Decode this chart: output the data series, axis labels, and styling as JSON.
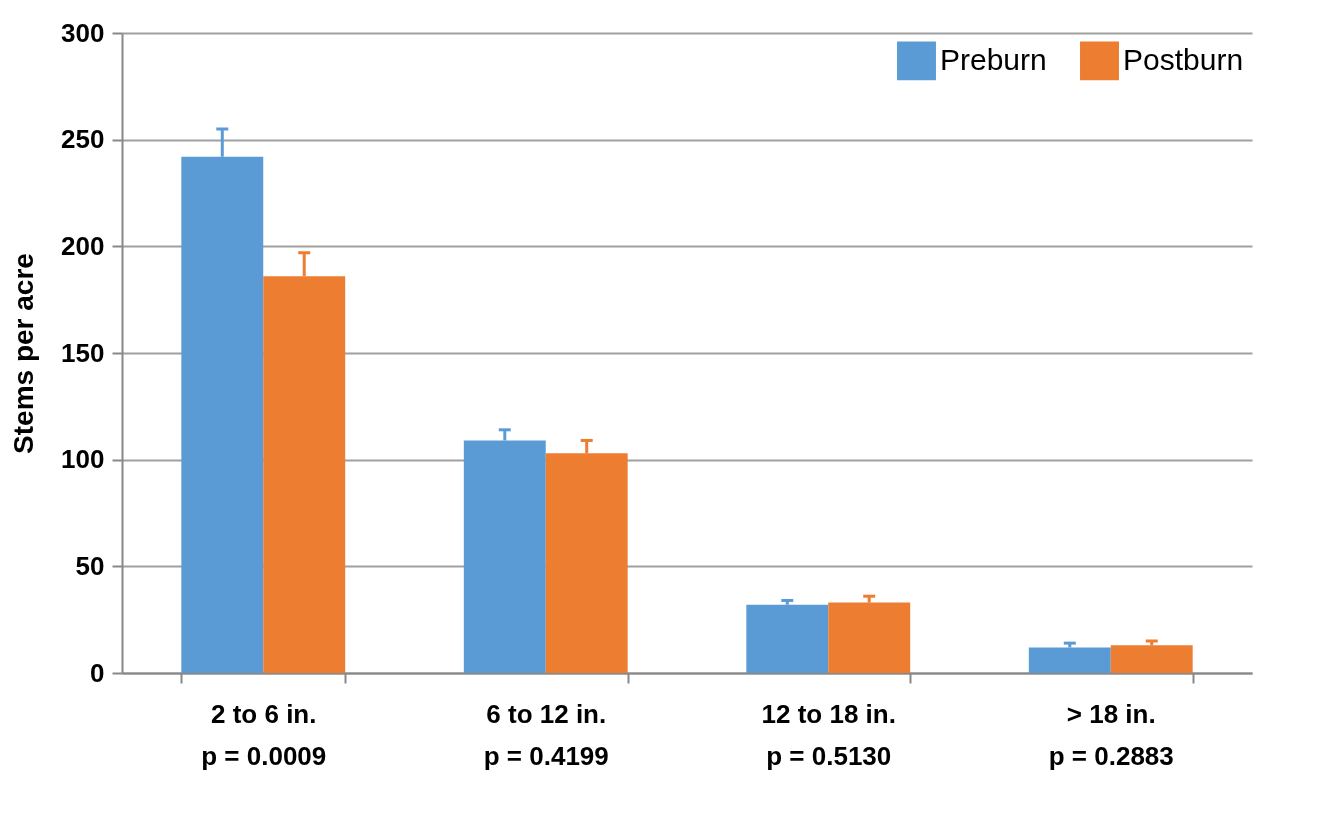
{
  "chart_data": {
    "type": "bar",
    "ylabel": "Stems per acre",
    "categories": [
      "2 to 6 in.\np = 0.0009",
      "6 to 12 in.\np = 0.4199",
      "12 to 18 in.\np = 0.5130",
      "> 18 in.\np = 0.2883"
    ],
    "series": [
      {
        "name": "Preburn",
        "color": "#5b9bd5",
        "values": [
          242,
          109,
          32,
          12
        ],
        "errors": [
          [
            242,
            255
          ],
          [
            109,
            114
          ],
          [
            32,
            34
          ],
          [
            12,
            14
          ]
        ]
      },
      {
        "name": "Postburn",
        "color": "#ed7d31",
        "values": [
          186,
          103,
          33,
          13
        ],
        "errors": [
          [
            186,
            197
          ],
          [
            103,
            109
          ],
          [
            33,
            36
          ],
          [
            13,
            15
          ]
        ]
      }
    ],
    "ylim": [
      0,
      300
    ],
    "yticks": [
      0,
      50,
      100,
      150,
      200,
      250,
      300
    ],
    "grid": "y",
    "legend": "top right"
  }
}
